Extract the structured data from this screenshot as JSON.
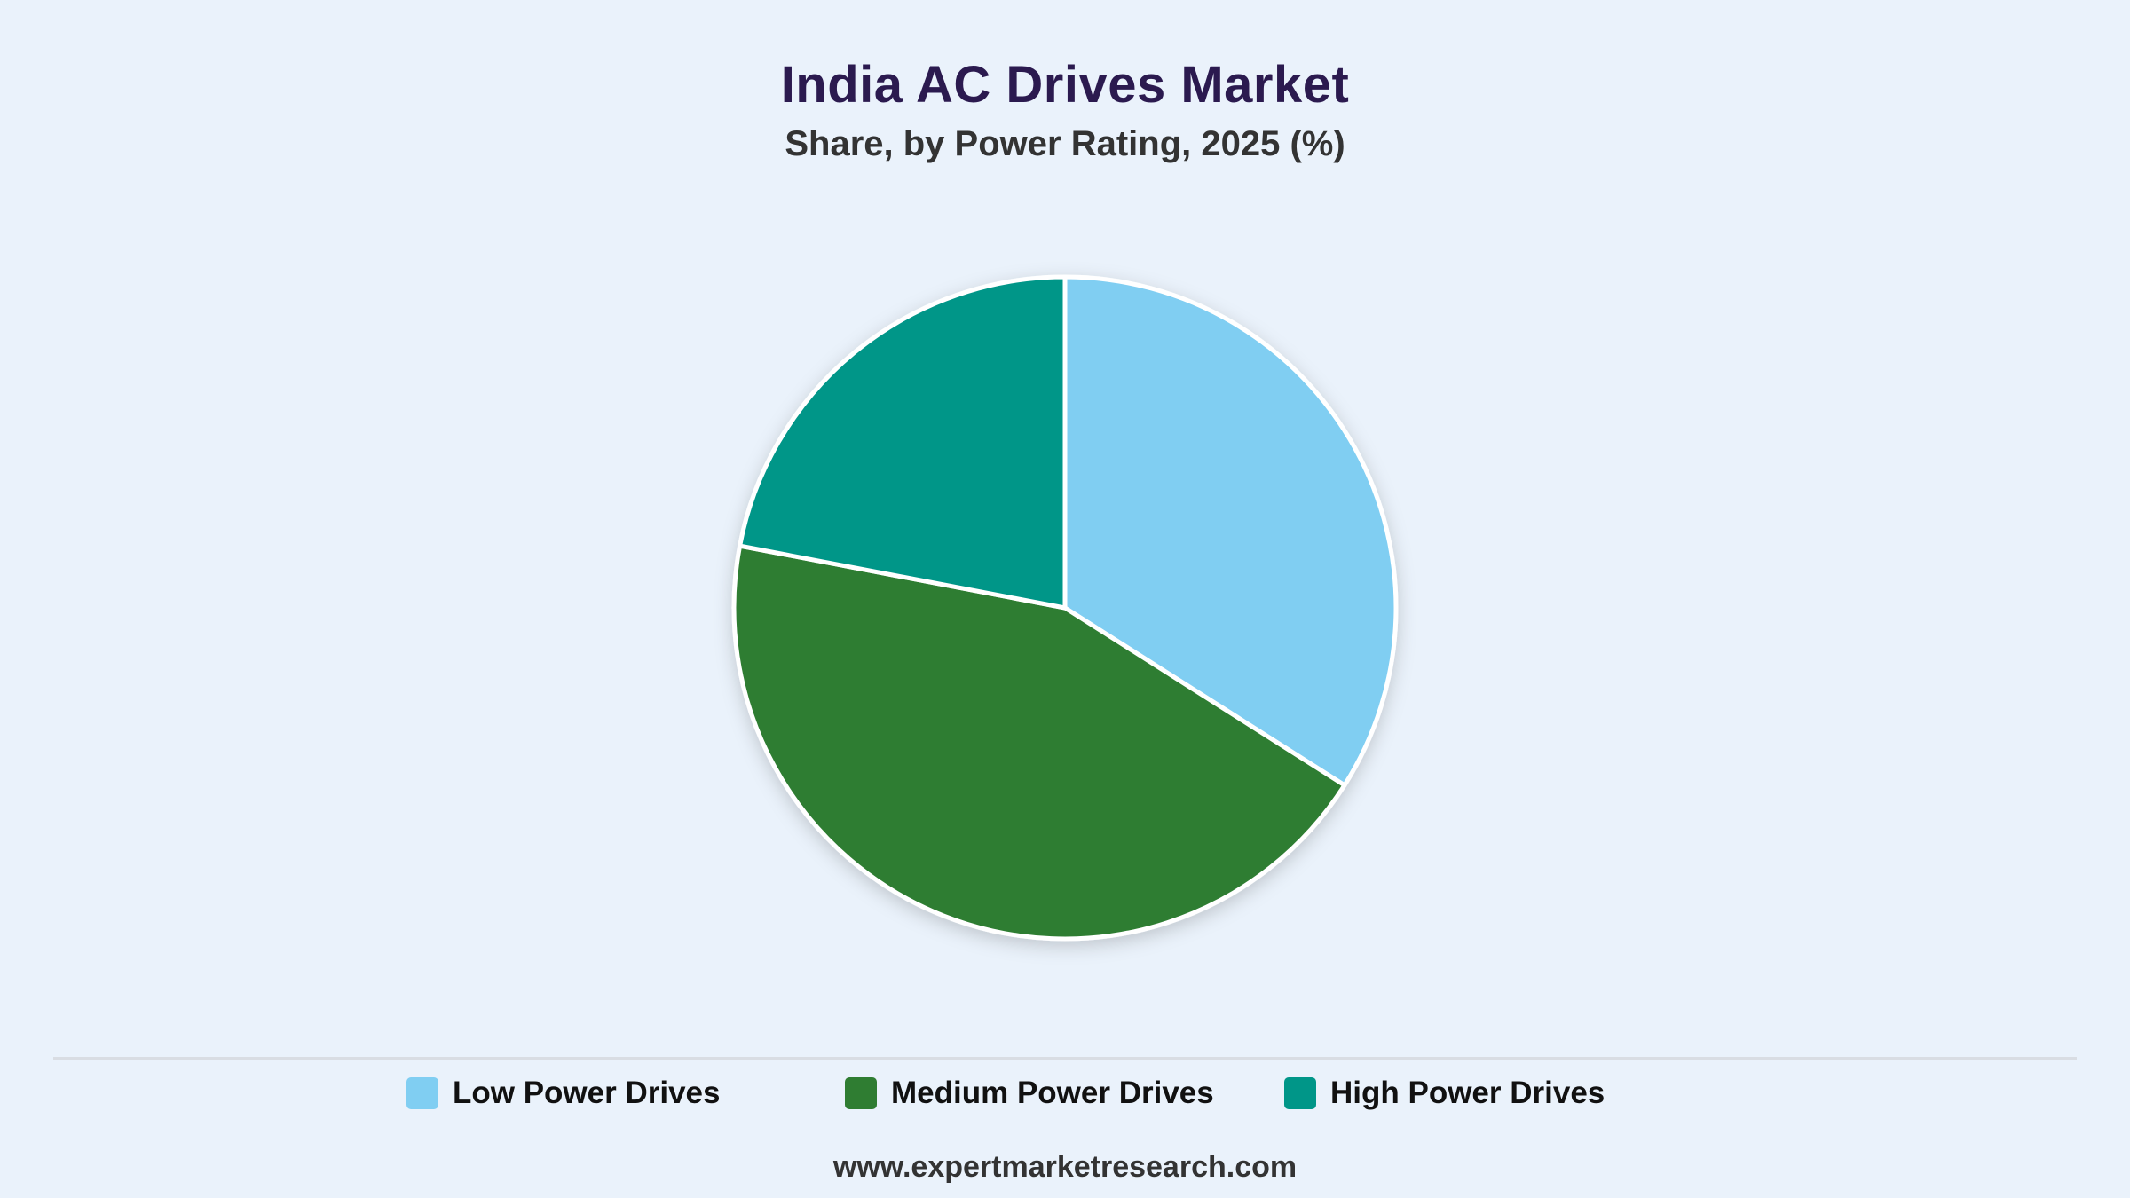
{
  "page": {
    "background": "#eaf2fb"
  },
  "chart_data": {
    "type": "pie",
    "title": "India AC Drives Market",
    "subtitle": "Share, by Power Rating, 2025 (%)",
    "categories": [
      "Low Power Drives",
      "Medium Power Drives",
      "High Power Drives"
    ],
    "values": [
      34,
      44,
      22
    ],
    "colors": [
      "#80cef2",
      "#2f7d32",
      "#009688"
    ],
    "slice_border_color": "#ffffff",
    "legend_position": "bottom",
    "start_angle_deg": 0,
    "direction": "clockwise"
  },
  "footer": {
    "source": "www.expertmarketresearch.com"
  }
}
